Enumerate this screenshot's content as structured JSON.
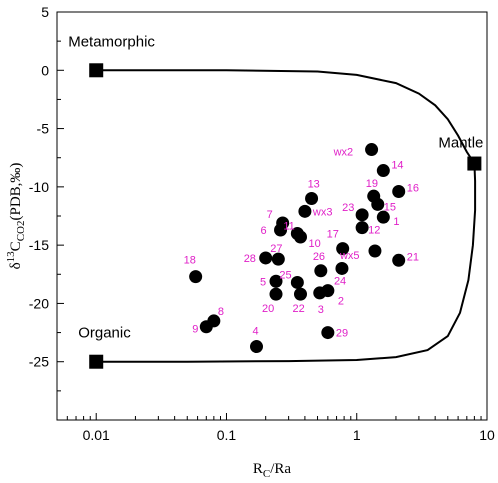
{
  "chart_data": {
    "type": "scatter",
    "xscale": "log",
    "xlim": [
      0.005,
      10
    ],
    "ylim": [
      -30,
      5
    ],
    "xticks": [
      {
        "v": 0.01,
        "label": "0.01"
      },
      {
        "v": 0.1,
        "label": "0.1"
      },
      {
        "v": 1,
        "label": "1"
      },
      {
        "v": 10,
        "label": "10"
      }
    ],
    "yticks": [
      {
        "v": 5,
        "label": "5"
      },
      {
        "v": 0,
        "label": "0"
      },
      {
        "v": -5,
        "label": "-5"
      },
      {
        "v": -10,
        "label": "-10"
      },
      {
        "v": -15,
        "label": "-15"
      },
      {
        "v": -20,
        "label": "-20"
      },
      {
        "v": -25,
        "label": "-25"
      }
    ],
    "xlabel": {
      "main": "R",
      "sub": "C",
      "rest": "/Ra"
    },
    "ylabel": {
      "pre": "δ",
      "sup": "13",
      "main": "C",
      "sub": "CO2",
      "rest": "(PDB,‰)"
    },
    "grid": false,
    "point_color": "#000000",
    "label_color": "#e020c8",
    "endmembers": [
      {
        "name": "Metamorphic",
        "x": 0.01,
        "y": 0
      },
      {
        "name": "Mantle",
        "x": 8,
        "y": -8
      },
      {
        "name": "Organic",
        "x": 0.01,
        "y": -25
      }
    ],
    "mixing_curve": [
      [
        0.01,
        0
      ],
      [
        0.1,
        0
      ],
      [
        0.5,
        -0.1
      ],
      [
        1,
        -0.4
      ],
      [
        2,
        -1.1
      ],
      [
        3,
        -2.0
      ],
      [
        4,
        -3.0
      ],
      [
        5,
        -4.2
      ],
      [
        6,
        -5.6
      ],
      [
        7,
        -7.0
      ],
      [
        8,
        -8
      ],
      [
        8.1,
        -9.5
      ],
      [
        8.1,
        -12
      ],
      [
        7.8,
        -15
      ],
      [
        7.2,
        -18
      ],
      [
        6.2,
        -20.8
      ],
      [
        5,
        -22.8
      ],
      [
        3.5,
        -24
      ],
      [
        2,
        -24.6
      ],
      [
        1,
        -24.85
      ],
      [
        0.3,
        -24.95
      ],
      [
        0.05,
        -25
      ],
      [
        0.01,
        -25
      ]
    ],
    "points": [
      {
        "label": "wx2",
        "x": 1.3,
        "y": -6.8
      },
      {
        "label": "14",
        "x": 1.6,
        "y": -8.6
      },
      {
        "label": "16",
        "x": 2.1,
        "y": -10.4
      },
      {
        "label": "13",
        "x": 0.45,
        "y": -11.0
      },
      {
        "label": "19",
        "x": 1.35,
        "y": -10.8
      },
      {
        "label": "15",
        "x": 1.45,
        "y": -11.5
      },
      {
        "label": "wx3",
        "x": 0.4,
        "y": -12.1
      },
      {
        "label": "23",
        "x": 1.1,
        "y": -12.4
      },
      {
        "label": "1",
        "x": 1.6,
        "y": -12.6
      },
      {
        "label": "7",
        "x": 0.27,
        "y": -13.1
      },
      {
        "label": "12",
        "x": 1.1,
        "y": -13.5
      },
      {
        "label": "6",
        "x": 0.26,
        "y": -13.7
      },
      {
        "label": "11",
        "x": 0.35,
        "y": -14.0
      },
      {
        "label": "10",
        "x": 0.37,
        "y": -14.3
      },
      {
        "label": "17",
        "x": 0.78,
        "y": -15.3
      },
      {
        "label": "wx5",
        "x": 1.38,
        "y": -15.5
      },
      {
        "label": "27",
        "x": 0.25,
        "y": -16.2
      },
      {
        "label": "28",
        "x": 0.2,
        "y": -16.1
      },
      {
        "label": "21",
        "x": 2.1,
        "y": -16.3
      },
      {
        "label": "18",
        "x": 0.058,
        "y": -17.7
      },
      {
        "label": "26",
        "x": 0.53,
        "y": -17.2
      },
      {
        "label": "24",
        "x": 0.77,
        "y": -17.0
      },
      {
        "label": "25",
        "x": 0.35,
        "y": -18.2
      },
      {
        "label": "5",
        "x": 0.24,
        "y": -18.1
      },
      {
        "label": "20",
        "x": 0.24,
        "y": -19.2
      },
      {
        "label": "22",
        "x": 0.37,
        "y": -19.2
      },
      {
        "label": "3",
        "x": 0.52,
        "y": -19.1
      },
      {
        "label": "2",
        "x": 0.6,
        "y": -18.9
      },
      {
        "label": "8",
        "x": 0.08,
        "y": -21.5
      },
      {
        "label": "9",
        "x": 0.07,
        "y": -22.0
      },
      {
        "label": "29",
        "x": 0.6,
        "y": -22.5
      },
      {
        "label": "4",
        "x": 0.17,
        "y": -23.7
      }
    ],
    "label_offsets": {
      "wx2": [
        -38,
        6
      ],
      "14": [
        8,
        -2
      ],
      "16": [
        8,
        0
      ],
      "13": [
        -4,
        -11
      ],
      "19": [
        -8,
        -9
      ],
      "15": [
        6,
        6
      ],
      "wx3": [
        8,
        4
      ],
      "23": [
        -20,
        -4
      ],
      "1": [
        10,
        8
      ],
      "7": [
        -16,
        -5
      ],
      "12": [
        6,
        6
      ],
      "6": [
        -20,
        4
      ],
      "11": [
        -14,
        -4
      ],
      "10": [
        8,
        10
      ],
      "17": [
        -16,
        -11
      ],
      "wx5": [
        -35,
        8
      ],
      "27": [
        -8,
        -7
      ],
      "28": [
        -22,
        4
      ],
      "21": [
        8,
        0
      ],
      "18": [
        -12,
        -13
      ],
      "26": [
        -8,
        -11
      ],
      "24": [
        -8,
        16
      ],
      "25": [
        -18,
        -4
      ],
      "5": [
        -16,
        4
      ],
      "20": [
        -14,
        18
      ],
      "22": [
        -8,
        18
      ],
      "3": [
        -2,
        20
      ],
      "2": [
        10,
        14
      ],
      "8": [
        4,
        -6
      ],
      "9": [
        -14,
        6
      ],
      "29": [
        8,
        4
      ],
      "4": [
        -4,
        -12
      ]
    }
  }
}
